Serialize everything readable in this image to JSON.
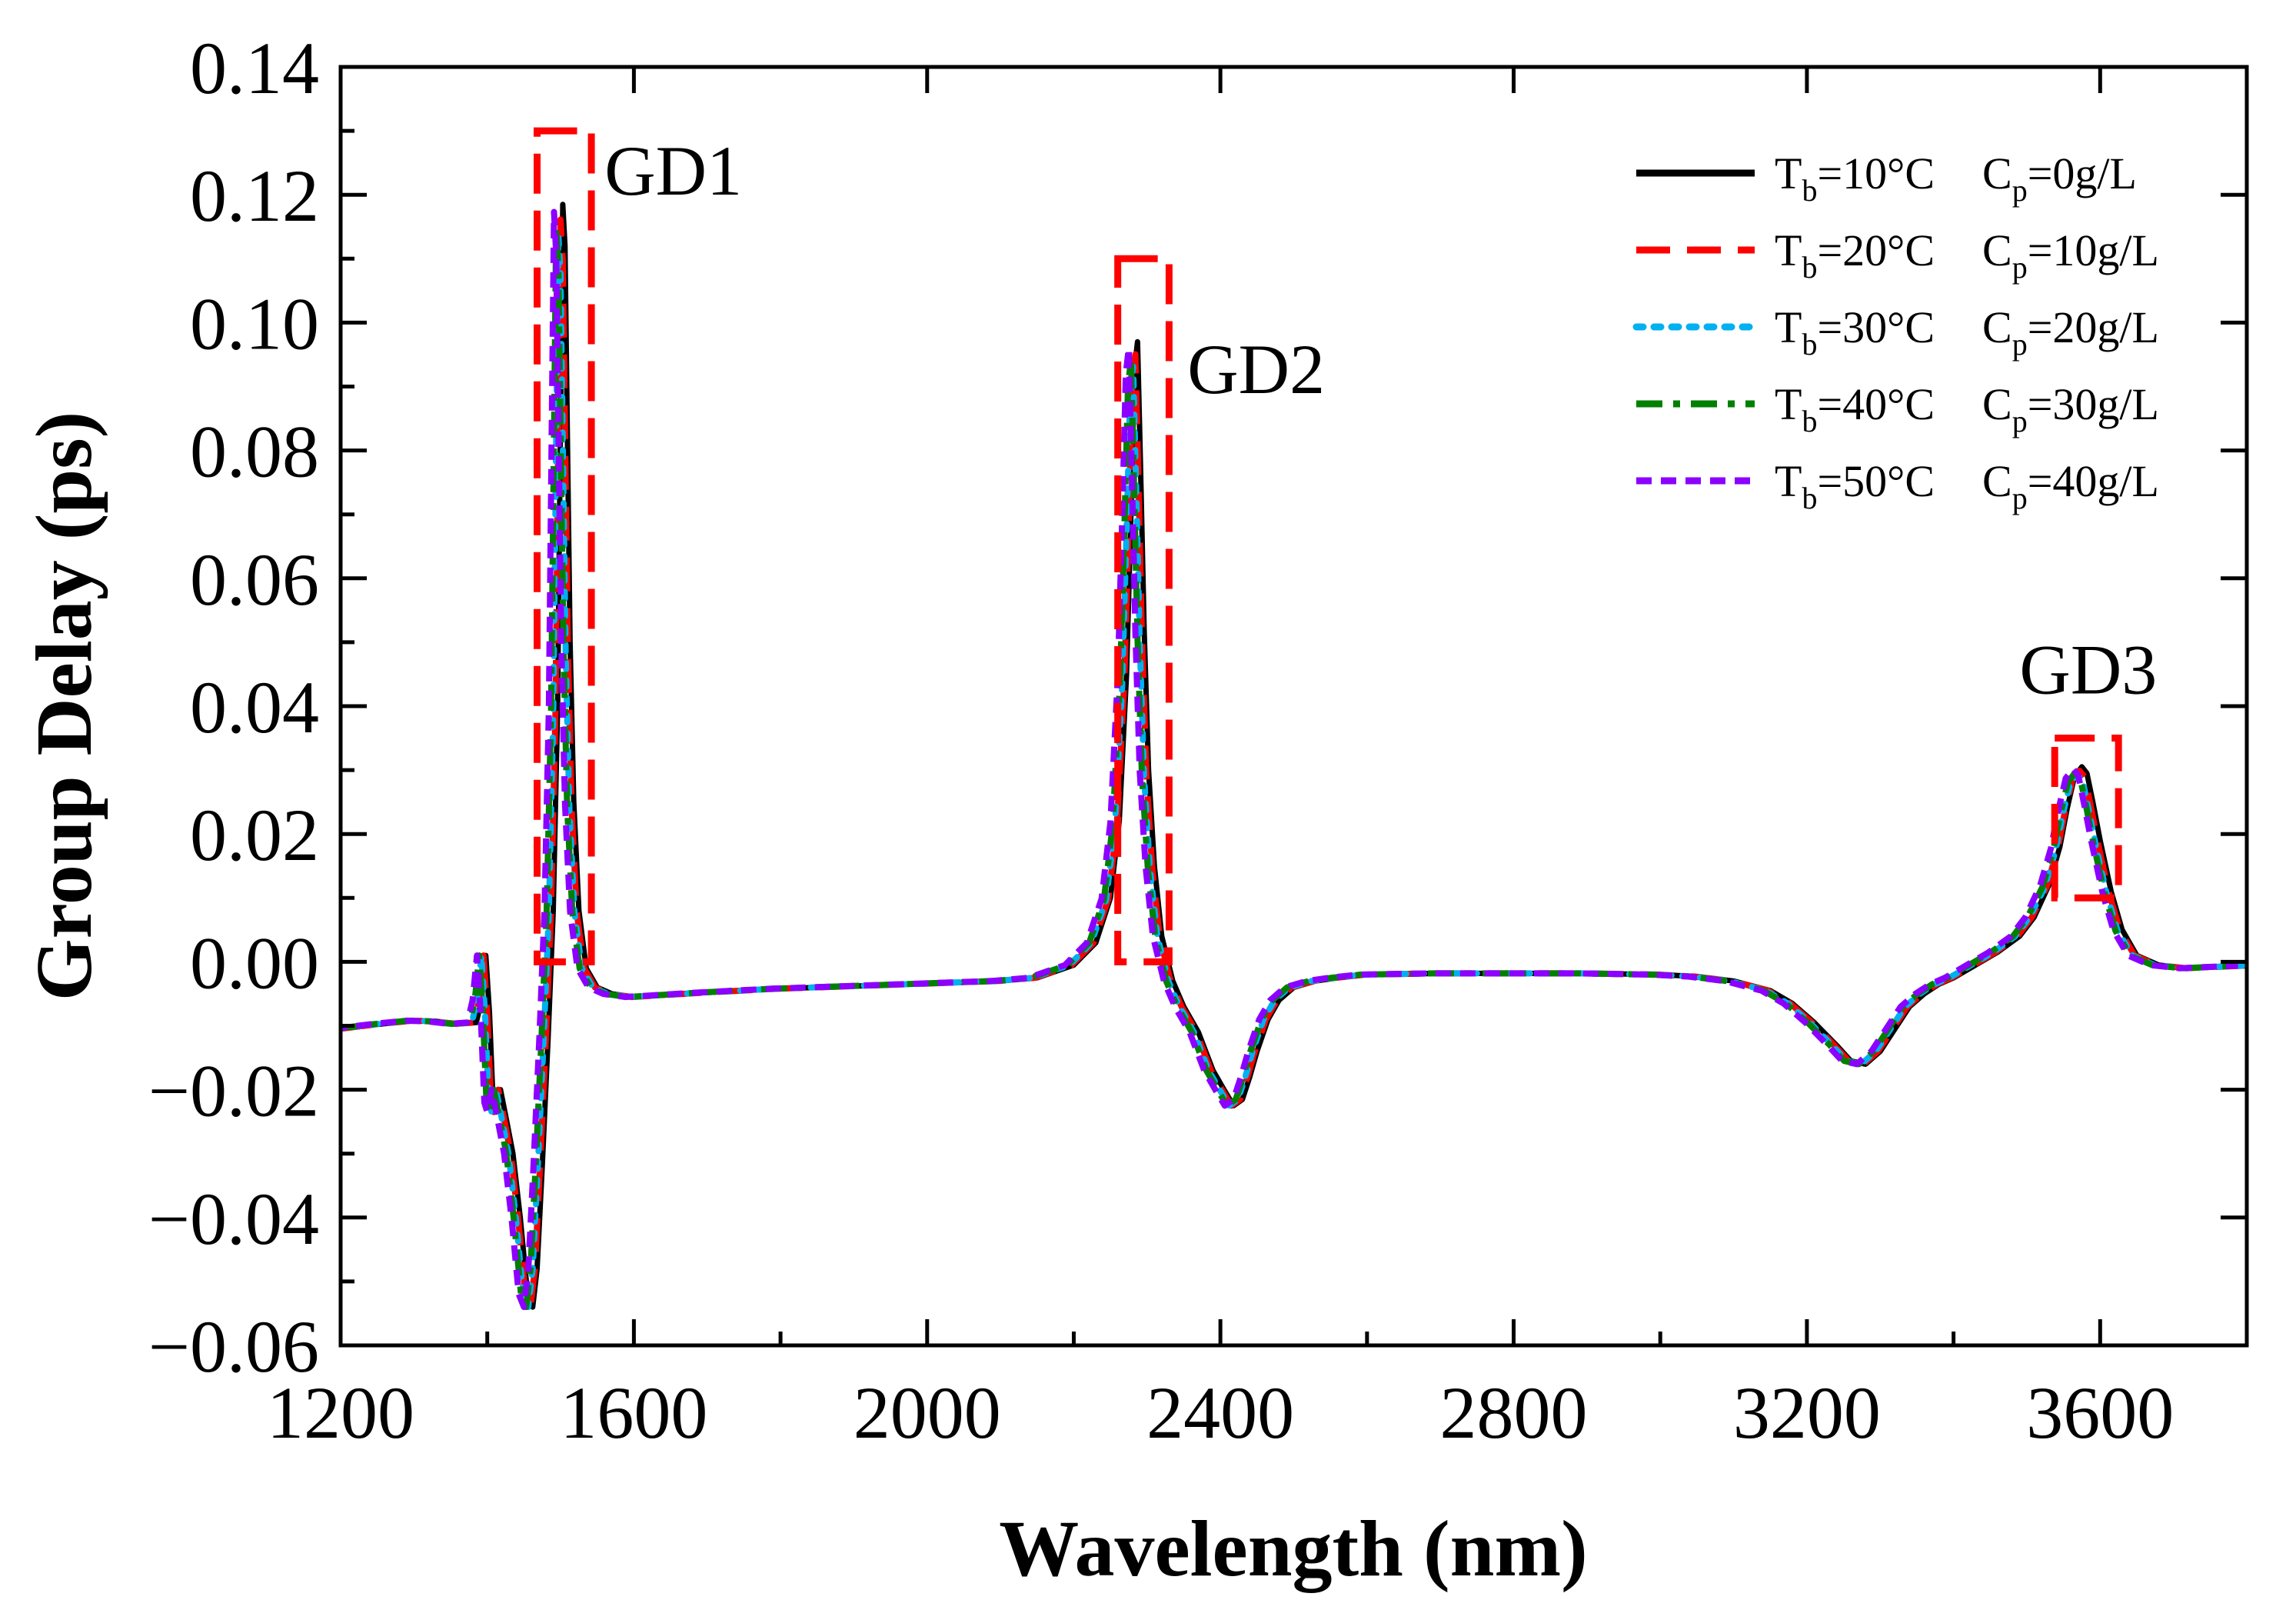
{
  "chart_data": {
    "type": "line",
    "title": "",
    "xlabel": "Wavelength (nm)",
    "ylabel": "Group Delay (ps)",
    "xlim": [
      1200,
      3800
    ],
    "ylim": [
      -0.06,
      0.14
    ],
    "x_ticks": [
      1200,
      1600,
      2000,
      2400,
      2800,
      3200,
      3600
    ],
    "x_minor_ticks": [
      1400,
      1800,
      2200,
      2600,
      3000,
      3400
    ],
    "y_ticks": [
      -0.06,
      -0.04,
      -0.02,
      0.0,
      0.02,
      0.04,
      0.06,
      0.08,
      0.1,
      0.12,
      0.14
    ],
    "y_minor_ticks": [
      -0.05,
      -0.03,
      -0.01,
      0.01,
      0.03,
      0.05,
      0.07,
      0.09,
      0.11,
      0.13
    ],
    "x_tick_labels": [
      "1200",
      "1600",
      "2000",
      "2400",
      "2800",
      "3200",
      "3600"
    ],
    "y_tick_labels": [
      "−0.06",
      "−0.04",
      "−0.02",
      "0.00",
      "0.02",
      "0.04",
      "0.06",
      "0.08",
      "0.10",
      "0.12",
      "0.14"
    ],
    "grid": false,
    "legend_position": "top-right",
    "series": [
      {
        "name": "Tb=10°C Cp=0g/L",
        "legend": {
          "t_value": "=10°C",
          "c_value": "=0g/L"
        },
        "color": "#000000",
        "dash": "solid",
        "offset_nm": 0,
        "peak_scale": 1.0
      },
      {
        "name": "Tb=20°C Cp=10g/L",
        "legend": {
          "t_value": "=20°C",
          "c_value": "=10g/L"
        },
        "color": "#ff0000",
        "dash": "dash",
        "offset_nm": -3,
        "peak_scale": 0.98
      },
      {
        "name": "Tb=30°C Cp=20g/L",
        "legend": {
          "t_value": "=30°C",
          "c_value": "=20g/L"
        },
        "color": "#00b0f0",
        "dash": "dot",
        "offset_nm": -6,
        "peak_scale": 0.96
      },
      {
        "name": "Tb=40°C Cp=30g/L",
        "legend": {
          "t_value": "=40°C",
          "c_value": "=30g/L"
        },
        "color": "#008000",
        "dash": "dashdot",
        "offset_nm": -9,
        "peak_scale": 0.97
      },
      {
        "name": "Tb=50°C Cp=40g/L",
        "legend": {
          "t_value": "=50°C",
          "c_value": "=40g/L"
        },
        "color": "#8b00ff",
        "dash": "shortdash",
        "offset_nm": -12,
        "peak_scale": 0.99
      }
    ],
    "base_curve": {
      "x": [
        1200,
        1250,
        1300,
        1330,
        1360,
        1385,
        1392,
        1398,
        1403,
        1408,
        1412,
        1418,
        1425,
        1435,
        1445,
        1455,
        1462,
        1468,
        1475,
        1483,
        1490,
        1496,
        1500,
        1503,
        1506,
        1509,
        1513,
        1518,
        1525,
        1535,
        1550,
        1570,
        1600,
        1700,
        1800,
        1900,
        2000,
        2100,
        2150,
        2200,
        2230,
        2250,
        2262,
        2272,
        2278,
        2283,
        2287,
        2291,
        2296,
        2302,
        2310,
        2320,
        2335,
        2350,
        2370,
        2390,
        2405,
        2418,
        2430,
        2440,
        2450,
        2465,
        2480,
        2500,
        2530,
        2560,
        2600,
        2700,
        2800,
        2900,
        3000,
        3050,
        3100,
        3150,
        3180,
        3210,
        3240,
        3260,
        3280,
        3300,
        3320,
        3340,
        3360,
        3380,
        3400,
        3430,
        3460,
        3490,
        3510,
        3530,
        3545,
        3555,
        3565,
        3575,
        3582,
        3590,
        3600,
        3615,
        3630,
        3650,
        3680,
        3720,
        3760,
        3800
      ],
      "y": [
        -0.0105,
        -0.0098,
        -0.0092,
        -0.0093,
        -0.0097,
        -0.0095,
        -0.006,
        0.001,
        -0.008,
        -0.022,
        -0.0235,
        -0.02,
        -0.024,
        -0.03,
        -0.04,
        -0.052,
        -0.054,
        -0.048,
        -0.032,
        -0.012,
        0.008,
        0.04,
        0.085,
        0.1185,
        0.112,
        0.085,
        0.05,
        0.025,
        0.008,
        -0.001,
        -0.004,
        -0.005,
        -0.0055,
        -0.0048,
        -0.0042,
        -0.0038,
        -0.0034,
        -0.003,
        -0.0025,
        -0.0005,
        0.003,
        0.01,
        0.022,
        0.045,
        0.07,
        0.093,
        0.097,
        0.078,
        0.052,
        0.03,
        0.015,
        0.004,
        -0.003,
        -0.007,
        -0.011,
        -0.017,
        -0.02,
        -0.0225,
        -0.0215,
        -0.018,
        -0.014,
        -0.009,
        -0.006,
        -0.004,
        -0.003,
        -0.0025,
        -0.002,
        -0.0018,
        -0.0018,
        -0.0018,
        -0.002,
        -0.0023,
        -0.003,
        -0.0045,
        -0.0065,
        -0.0095,
        -0.013,
        -0.0155,
        -0.016,
        -0.014,
        -0.0105,
        -0.007,
        -0.005,
        -0.0035,
        -0.0025,
        -0.0005,
        0.0015,
        0.004,
        0.007,
        0.012,
        0.018,
        0.024,
        0.029,
        0.0305,
        0.0295,
        0.025,
        0.019,
        0.011,
        0.005,
        0.001,
        -0.0005,
        -0.001,
        -0.0008,
        -0.0006
      ]
    },
    "peak_ranges_nm": [
      [
        1470,
        1560
      ],
      [
        2240,
        2340
      ],
      [
        3520,
        3650
      ]
    ],
    "annotations": [
      {
        "label": "GD1",
        "x": 1560,
        "y": 0.12
      },
      {
        "label": "GD2",
        "x": 2355,
        "y": 0.089
      },
      {
        "label": "GD3",
        "x": 3490,
        "y": 0.042
      }
    ],
    "highlight_boxes": [
      {
        "x0": 1468,
        "x1": 1542,
        "y0": 0.0,
        "y1": 0.13
      },
      {
        "x0": 2260,
        "x1": 2330,
        "y0": 0.0,
        "y1": 0.11
      },
      {
        "x0": 3538,
        "x1": 3625,
        "y0": 0.01,
        "y1": 0.035
      }
    ]
  },
  "legend": {
    "t_symbol": "T",
    "t_subscript": "b",
    "c_symbol": "C",
    "c_subscript": "p"
  },
  "colors": {
    "highlight_box": "#ff0000",
    "axis": "#000000",
    "background": "#ffffff"
  }
}
